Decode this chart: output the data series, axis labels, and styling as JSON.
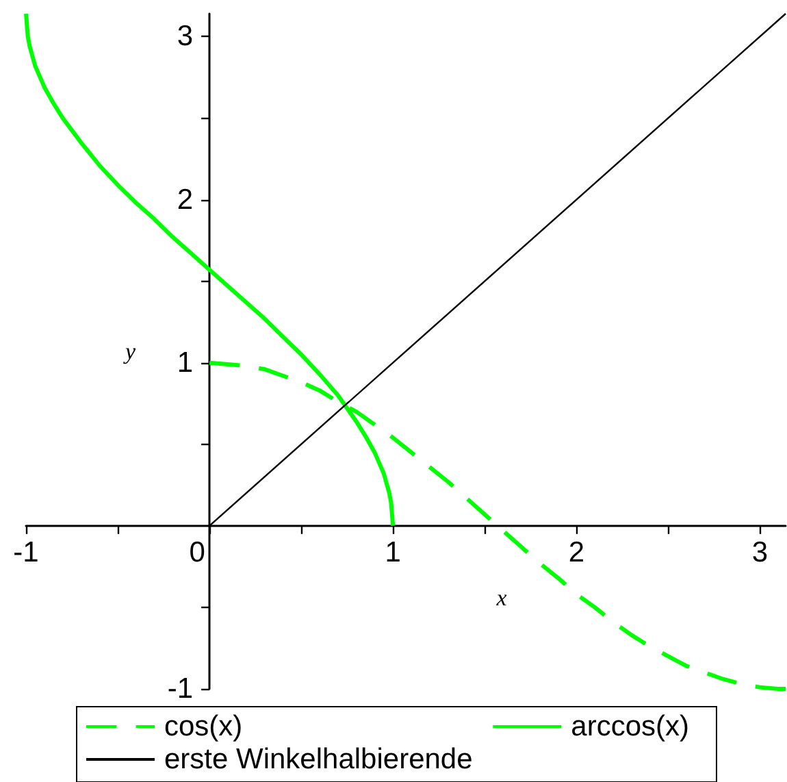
{
  "chart_data": {
    "type": "line",
    "xlabel": "x",
    "ylabel": "y",
    "xlim": [
      -1,
      3.14
    ],
    "ylim": [
      -1,
      3.14
    ],
    "xticks": [
      -1,
      {
        "value": -0.5,
        "label": null
      },
      0,
      {
        "value": 0.5,
        "label": null
      },
      1,
      {
        "value": 1.5,
        "label": null
      },
      2,
      {
        "value": 2.5,
        "label": null
      },
      3
    ],
    "yticks": [
      -1,
      {
        "value": -0.5,
        "label": null
      },
      {
        "value": 0.5,
        "label": null
      },
      1,
      {
        "value": 1.5,
        "label": null
      },
      2,
      {
        "value": 2.5,
        "label": null
      },
      3
    ],
    "legend": "bottom",
    "marker": "none",
    "series": [
      {
        "name": "cos(x)",
        "color": "#00ff00",
        "line_style": "dashed",
        "x": [
          0,
          0.1,
          0.2,
          0.3,
          0.4,
          0.5,
          0.6,
          0.7,
          0.8,
          0.9,
          1,
          1.1,
          1.2,
          1.3,
          1.4,
          1.5,
          1.6,
          1.7,
          1.8,
          1.9,
          2,
          2.1,
          2.2,
          2.3,
          2.4,
          2.5,
          2.6,
          2.7,
          2.8,
          2.9,
          3,
          3.1,
          3.14
        ],
        "values": [
          1,
          0.99,
          0.98,
          0.96,
          0.92,
          0.88,
          0.83,
          0.76,
          0.7,
          0.62,
          0.54,
          0.45,
          0.36,
          0.27,
          0.17,
          0.07,
          -0.03,
          -0.13,
          -0.23,
          -0.32,
          -0.42,
          -0.5,
          -0.59,
          -0.67,
          -0.74,
          -0.8,
          -0.86,
          -0.9,
          -0.94,
          -0.97,
          -0.99,
          -1,
          -1
        ]
      },
      {
        "name": "arccos(x)",
        "color": "#00ff00",
        "line_style": "solid",
        "x": [
          -1,
          -0.99,
          -0.98,
          -0.95,
          -0.9,
          -0.85,
          -0.8,
          -0.7,
          -0.6,
          -0.5,
          -0.4,
          -0.3,
          -0.2,
          -0.1,
          0,
          0.1,
          0.2,
          0.3,
          0.4,
          0.5,
          0.6,
          0.7,
          0.8,
          0.85,
          0.9,
          0.95,
          0.98,
          0.99,
          1
        ],
        "values": [
          3.14,
          3,
          2.94,
          2.82,
          2.69,
          2.59,
          2.5,
          2.35,
          2.21,
          2.09,
          1.98,
          1.88,
          1.77,
          1.67,
          1.57,
          1.47,
          1.37,
          1.27,
          1.16,
          1.05,
          0.93,
          0.8,
          0.64,
          0.55,
          0.45,
          0.32,
          0.2,
          0.14,
          0
        ]
      },
      {
        "name": "erste Winkelhalbierende",
        "color": "#000000",
        "line_style": "solid",
        "x": [
          0,
          3.14
        ],
        "values": [
          0,
          3.14
        ]
      }
    ]
  }
}
